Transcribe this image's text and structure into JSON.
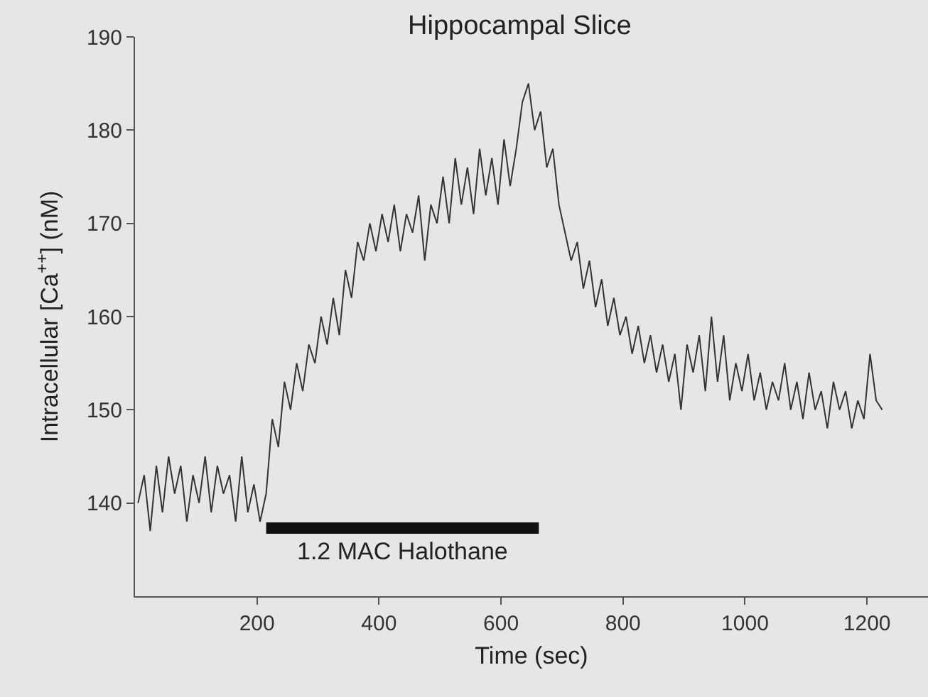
{
  "chart_data": {
    "type": "line",
    "title": "Hippocampal Slice",
    "xlabel": "Time (sec)",
    "ylabel": "Intracellular [Ca$^{++}$] (nM)",
    "xlim": [
      0,
      1300
    ],
    "xticks": [
      200,
      400,
      600,
      800,
      1000,
      1200
    ],
    "ylim": [
      130,
      190
    ],
    "yticks": [
      140,
      150,
      160,
      170,
      180,
      190
    ],
    "series": [
      {
        "color": "#333333",
        "x": [
          5,
          15,
          25,
          35,
          45,
          55,
          65,
          75,
          85,
          95,
          105,
          115,
          125,
          135,
          145,
          155,
          165,
          175,
          185,
          195,
          205,
          215,
          225,
          235,
          245,
          255,
          265,
          275,
          285,
          295,
          305,
          315,
          325,
          335,
          345,
          355,
          365,
          375,
          385,
          395,
          405,
          415,
          425,
          435,
          445,
          455,
          465,
          475,
          485,
          495,
          505,
          515,
          525,
          535,
          545,
          555,
          565,
          575,
          585,
          595,
          605,
          615,
          625,
          635,
          645,
          655,
          665,
          675,
          685,
          695,
          705,
          715,
          725,
          735,
          745,
          755,
          765,
          775,
          785,
          795,
          805,
          815,
          825,
          835,
          845,
          855,
          865,
          875,
          885,
          895,
          905,
          915,
          925,
          935,
          945,
          955,
          965,
          975,
          985,
          995,
          1005,
          1015,
          1025,
          1035,
          1045,
          1055,
          1065,
          1075,
          1085,
          1095,
          1105,
          1115,
          1125,
          1135,
          1145,
          1155,
          1165,
          1175,
          1185,
          1195,
          1205,
          1215,
          1225
        ],
        "values": [
          140,
          143,
          137,
          144,
          139,
          145,
          141,
          144,
          138,
          143,
          140,
          145,
          139,
          144,
          141,
          143,
          138,
          145,
          139,
          142,
          138,
          141,
          149,
          146,
          153,
          150,
          155,
          152,
          157,
          155,
          160,
          157,
          162,
          158,
          165,
          162,
          168,
          166,
          170,
          167,
          171,
          168,
          172,
          167,
          171,
          169,
          173,
          166,
          172,
          170,
          175,
          170,
          177,
          172,
          176,
          171,
          178,
          173,
          177,
          172,
          179,
          174,
          178,
          183,
          185,
          180,
          182,
          176,
          178,
          172,
          169,
          166,
          168,
          163,
          166,
          161,
          164,
          159,
          162,
          158,
          160,
          156,
          159,
          155,
          158,
          154,
          157,
          153,
          156,
          150,
          157,
          154,
          158,
          152,
          160,
          153,
          158,
          151,
          155,
          152,
          156,
          151,
          154,
          150,
          153,
          151,
          155,
          150,
          153,
          149,
          154,
          150,
          152,
          148,
          153,
          150,
          152,
          148,
          151,
          149,
          156,
          151,
          150
        ]
      },
      {
        "color": "#111111",
        "x": [
          215,
          662
        ],
        "values": [
          137.3,
          137.3
        ]
      }
    ],
    "annotations": [
      {
        "text": "1.2 MAC Halothane",
        "x": 438,
        "y": 137.3
      }
    ]
  }
}
